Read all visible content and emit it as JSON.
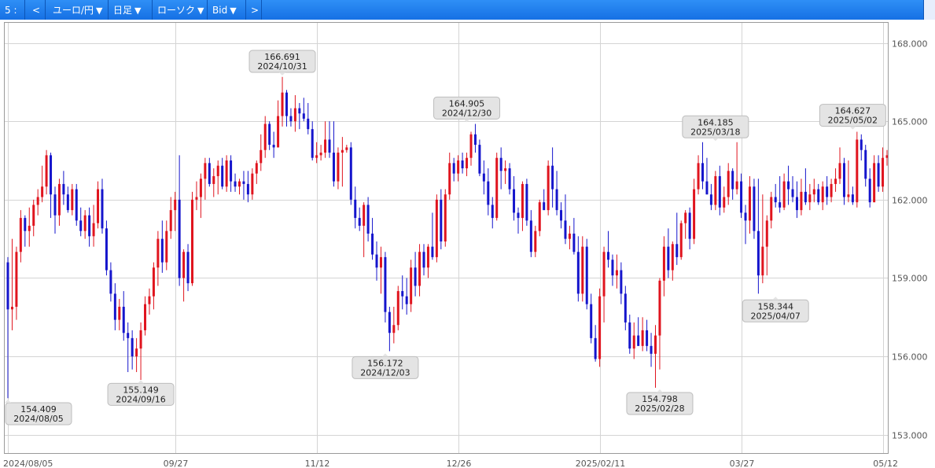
{
  "toolbar": {
    "slot_label": "5 :",
    "prev_label": "<",
    "pair_label": "ユーロ/円",
    "interval_label": "日足",
    "type_label": "ローソク",
    "price_label": "Bid",
    "next_label": ">"
  },
  "colors": {
    "up": "#e0141e",
    "down": "#1515cc",
    "grid": "#d4d4d4",
    "label_bg": "#e4e4e4"
  },
  "chart_data": {
    "type": "candlestick",
    "symbol": "EUR/JPY",
    "interval": "daily",
    "ylim": [
      152.3,
      168.8
    ],
    "yticks": [
      153.0,
      156.0,
      159.0,
      162.0,
      165.0,
      168.0
    ],
    "ytick_labels": [
      "153.000",
      "156.000",
      "159.000",
      "162.000",
      "165.000",
      "168.000"
    ],
    "xtick_labels": [
      {
        "label": "2024/08/05",
        "idx": 0
      },
      {
        "label": "09/27",
        "idx": 39
      },
      {
        "label": "11/12",
        "idx": 72
      },
      {
        "label": "12/26",
        "idx": 105
      },
      {
        "label": "2025/02/11",
        "idx": 138
      },
      {
        "label": "03/27",
        "idx": 171
      },
      {
        "label": "05/12",
        "idx": 204
      }
    ],
    "annotations": [
      {
        "value": "154.409",
        "date": "2024/08/05",
        "idx": 0,
        "price": 154.409,
        "pos": "below"
      },
      {
        "value": "155.149",
        "date": "2024/09/16",
        "idx": 31,
        "price": 155.149,
        "pos": "below"
      },
      {
        "value": "166.691",
        "date": "2024/10/31",
        "idx": 64,
        "price": 166.691,
        "pos": "above"
      },
      {
        "value": "156.172",
        "date": "2024/12/03",
        "idx": 88,
        "price": 156.172,
        "pos": "below"
      },
      {
        "value": "164.905",
        "date": "2024/12/30",
        "idx": 107,
        "price": 164.905,
        "pos": "above"
      },
      {
        "value": "154.798",
        "date": "2025/02/28",
        "idx": 152,
        "price": 154.798,
        "pos": "below"
      },
      {
        "value": "164.185",
        "date": "2025/03/18",
        "idx": 165,
        "price": 164.185,
        "pos": "above"
      },
      {
        "value": "158.344",
        "date": "2025/04/07",
        "idx": 179,
        "price": 158.344,
        "pos": "below"
      },
      {
        "value": "164.627",
        "date": "2025/05/02",
        "idx": 197,
        "price": 164.627,
        "pos": "above"
      }
    ],
    "candles": [
      [
        159.6,
        159.8,
        154.4,
        157.8
      ],
      [
        157.8,
        160.5,
        157.0,
        157.9
      ],
      [
        157.9,
        160.2,
        157.4,
        160.0
      ],
      [
        160.0,
        161.6,
        159.6,
        161.3
      ],
      [
        161.3,
        161.4,
        160.2,
        160.8
      ],
      [
        160.8,
        161.7,
        160.2,
        161.0
      ],
      [
        161.0,
        162.0,
        160.6,
        161.8
      ],
      [
        161.8,
        162.4,
        161.4,
        162.1
      ],
      [
        162.1,
        163.3,
        161.9,
        162.5
      ],
      [
        162.5,
        163.9,
        162.2,
        163.7
      ],
      [
        163.7,
        163.8,
        161.3,
        162.2
      ],
      [
        162.2,
        162.5,
        160.7,
        161.4
      ],
      [
        161.4,
        162.8,
        161.0,
        162.6
      ],
      [
        162.6,
        163.1,
        161.8,
        162.2
      ],
      [
        162.2,
        162.5,
        161.5,
        161.6
      ],
      [
        161.6,
        162.6,
        161.4,
        162.4
      ],
      [
        162.4,
        162.6,
        161.0,
        161.2
      ],
      [
        161.2,
        161.7,
        160.6,
        160.8
      ],
      [
        160.8,
        161.6,
        160.5,
        161.4
      ],
      [
        161.4,
        161.7,
        160.2,
        160.6
      ],
      [
        160.6,
        161.8,
        160.2,
        161.1
      ],
      [
        161.1,
        162.7,
        160.9,
        162.4
      ],
      [
        162.4,
        162.8,
        160.7,
        160.9
      ],
      [
        160.9,
        161.2,
        159.1,
        159.3
      ],
      [
        159.3,
        159.6,
        158.1,
        158.4
      ],
      [
        158.4,
        158.8,
        157.0,
        157.4
      ],
      [
        157.4,
        158.2,
        157.0,
        157.9
      ],
      [
        157.9,
        158.5,
        156.6,
        156.9
      ],
      [
        156.9,
        157.3,
        155.4,
        156.7
      ],
      [
        156.7,
        157.0,
        155.5,
        156.0
      ],
      [
        156.0,
        156.7,
        155.4,
        156.3
      ],
      [
        156.3,
        157.3,
        155.1,
        157.0
      ],
      [
        157.0,
        158.3,
        156.8,
        158.0
      ],
      [
        158.0,
        158.6,
        157.6,
        158.3
      ],
      [
        158.3,
        159.6,
        157.8,
        159.4
      ],
      [
        159.4,
        160.8,
        158.7,
        160.5
      ],
      [
        160.5,
        161.2,
        159.2,
        159.6
      ],
      [
        159.6,
        161.2,
        159.3,
        160.8
      ],
      [
        160.8,
        162.1,
        160.5,
        161.6
      ],
      [
        161.6,
        162.3,
        160.8,
        162.0
      ],
      [
        162.0,
        163.7,
        158.7,
        159.0
      ],
      [
        159.0,
        160.1,
        158.1,
        160.0
      ],
      [
        160.0,
        160.3,
        158.5,
        158.8
      ],
      [
        158.8,
        162.3,
        158.7,
        162.0
      ],
      [
        162.0,
        162.7,
        161.6,
        162.1
      ],
      [
        162.1,
        163.0,
        161.3,
        162.8
      ],
      [
        162.8,
        163.6,
        162.0,
        163.4
      ],
      [
        163.4,
        163.6,
        162.5,
        162.6
      ],
      [
        162.6,
        163.2,
        162.1,
        162.9
      ],
      [
        162.9,
        163.5,
        162.2,
        163.3
      ],
      [
        163.3,
        163.6,
        162.4,
        162.5
      ],
      [
        162.5,
        163.7,
        162.3,
        163.5
      ],
      [
        163.5,
        163.7,
        162.3,
        162.7
      ],
      [
        162.7,
        163.0,
        162.3,
        162.5
      ],
      [
        162.5,
        162.8,
        162.2,
        162.7
      ],
      [
        162.7,
        163.1,
        162.0,
        162.6
      ],
      [
        162.6,
        163.1,
        161.9,
        162.2
      ],
      [
        162.2,
        163.2,
        162.0,
        163.0
      ],
      [
        163.0,
        163.5,
        162.6,
        163.4
      ],
      [
        163.4,
        164.5,
        163.1,
        163.9
      ],
      [
        163.9,
        165.2,
        163.6,
        164.9
      ],
      [
        164.9,
        165.0,
        163.9,
        164.1
      ],
      [
        164.1,
        164.6,
        163.6,
        164.0
      ],
      [
        164.0,
        165.8,
        164.0,
        165.2
      ],
      [
        165.2,
        166.7,
        164.8,
        166.1
      ],
      [
        166.1,
        166.2,
        164.8,
        165.2
      ],
      [
        165.2,
        165.5,
        164.8,
        165.0
      ],
      [
        165.0,
        166.0,
        164.6,
        165.5
      ],
      [
        165.5,
        165.7,
        164.7,
        165.3
      ],
      [
        165.3,
        165.9,
        165.0,
        165.1
      ],
      [
        165.1,
        165.7,
        164.5,
        164.7
      ],
      [
        164.7,
        165.0,
        163.5,
        163.6
      ],
      [
        163.6,
        164.2,
        163.4,
        163.7
      ],
      [
        163.7,
        164.1,
        163.5,
        163.8
      ],
      [
        163.8,
        165.0,
        163.6,
        164.3
      ],
      [
        164.3,
        165.0,
        163.6,
        163.8
      ],
      [
        163.8,
        165.0,
        162.5,
        162.7
      ],
      [
        162.7,
        164.0,
        162.4,
        163.8
      ],
      [
        163.8,
        164.4,
        162.5,
        163.9
      ],
      [
        163.9,
        164.1,
        163.8,
        164.0
      ],
      [
        164.0,
        164.2,
        161.8,
        162.0
      ],
      [
        162.0,
        162.5,
        160.9,
        161.3
      ],
      [
        161.3,
        161.7,
        160.8,
        161.0
      ],
      [
        161.0,
        161.9,
        159.8,
        161.8
      ],
      [
        161.8,
        162.1,
        160.4,
        160.7
      ],
      [
        160.7,
        161.3,
        159.7,
        159.9
      ],
      [
        159.9,
        160.4,
        158.9,
        159.4
      ],
      [
        159.4,
        160.2,
        158.4,
        159.8
      ],
      [
        159.8,
        160.0,
        157.3,
        157.7
      ],
      [
        157.7,
        157.9,
        156.2,
        156.9
      ],
      [
        156.9,
        157.9,
        156.5,
        157.2
      ],
      [
        157.2,
        158.7,
        157.0,
        158.5
      ],
      [
        158.5,
        159.1,
        157.8,
        158.3
      ],
      [
        158.3,
        159.0,
        157.6,
        158.0
      ],
      [
        158.0,
        159.7,
        157.7,
        159.4
      ],
      [
        159.4,
        160.0,
        158.3,
        158.7
      ],
      [
        158.7,
        160.3,
        158.3,
        160.0
      ],
      [
        160.0,
        160.3,
        159.1,
        159.4
      ],
      [
        159.4,
        160.3,
        159.0,
        160.2
      ],
      [
        160.2,
        161.5,
        159.7,
        159.8
      ],
      [
        159.8,
        162.2,
        159.6,
        162.0
      ],
      [
        162.0,
        162.4,
        160.1,
        160.4
      ],
      [
        160.4,
        162.4,
        160.2,
        162.2
      ],
      [
        162.2,
        163.8,
        162.0,
        163.4
      ],
      [
        163.4,
        163.6,
        162.7,
        163.0
      ],
      [
        163.0,
        163.7,
        162.7,
        163.5
      ],
      [
        163.5,
        163.8,
        163.0,
        163.2
      ],
      [
        163.2,
        163.8,
        162.9,
        163.6
      ],
      [
        163.6,
        164.6,
        163.3,
        164.5
      ],
      [
        164.5,
        164.9,
        163.8,
        164.1
      ],
      [
        164.1,
        164.3,
        162.9,
        163.0
      ],
      [
        163.0,
        163.5,
        162.2,
        162.7
      ],
      [
        162.7,
        163.2,
        161.4,
        161.8
      ],
      [
        161.8,
        162.1,
        160.9,
        161.3
      ],
      [
        161.3,
        163.8,
        161.2,
        163.6
      ],
      [
        163.6,
        164.0,
        162.4,
        163.1
      ],
      [
        163.1,
        163.5,
        162.6,
        163.2
      ],
      [
        163.2,
        163.4,
        162.2,
        162.4
      ],
      [
        162.4,
        162.9,
        161.2,
        161.5
      ],
      [
        161.5,
        161.7,
        160.7,
        161.3
      ],
      [
        161.3,
        162.7,
        160.8,
        162.6
      ],
      [
        162.6,
        162.8,
        161.0,
        161.2
      ],
      [
        161.2,
        161.6,
        159.8,
        160.0
      ],
      [
        160.0,
        161.0,
        159.8,
        160.8
      ],
      [
        160.8,
        162.0,
        160.6,
        161.9
      ],
      [
        161.9,
        162.4,
        161.6,
        161.6
      ],
      [
        161.6,
        163.5,
        161.4,
        163.3
      ],
      [
        163.3,
        164.0,
        161.7,
        162.4
      ],
      [
        162.4,
        163.1,
        161.4,
        161.6
      ],
      [
        161.6,
        161.9,
        160.9,
        161.2
      ],
      [
        161.2,
        162.2,
        160.3,
        160.5
      ],
      [
        160.5,
        161.0,
        160.1,
        160.7
      ],
      [
        160.7,
        161.3,
        159.9,
        160.0
      ],
      [
        160.0,
        160.6,
        158.1,
        158.4
      ],
      [
        158.4,
        160.6,
        158.1,
        160.2
      ],
      [
        160.2,
        160.5,
        157.8,
        158.0
      ],
      [
        158.0,
        158.4,
        156.5,
        156.7
      ],
      [
        156.7,
        157.2,
        155.8,
        155.9
      ],
      [
        155.9,
        158.6,
        155.6,
        158.3
      ],
      [
        158.3,
        160.2,
        157.3,
        160.0
      ],
      [
        160.0,
        160.8,
        159.4,
        159.7
      ],
      [
        159.7,
        159.9,
        158.7,
        159.1
      ],
      [
        159.1,
        159.9,
        158.6,
        159.3
      ],
      [
        159.3,
        159.6,
        158.0,
        158.4
      ],
      [
        158.4,
        158.7,
        157.0,
        157.3
      ],
      [
        157.3,
        157.6,
        156.1,
        156.3
      ],
      [
        156.3,
        157.3,
        155.9,
        156.8
      ],
      [
        156.8,
        157.5,
        156.4,
        156.4
      ],
      [
        156.4,
        157.5,
        156.2,
        157.0
      ],
      [
        157.0,
        157.4,
        156.2,
        156.4
      ],
      [
        156.4,
        156.9,
        155.6,
        156.1
      ],
      [
        156.1,
        157.2,
        154.8,
        156.8
      ],
      [
        156.8,
        159.0,
        155.5,
        158.9
      ],
      [
        158.9,
        160.6,
        158.3,
        160.2
      ],
      [
        160.2,
        160.9,
        159.0,
        159.3
      ],
      [
        159.3,
        160.4,
        158.9,
        160.3
      ],
      [
        160.3,
        161.5,
        159.5,
        159.8
      ],
      [
        159.8,
        161.2,
        159.7,
        161.1
      ],
      [
        161.1,
        161.6,
        160.5,
        161.5
      ],
      [
        161.5,
        161.7,
        160.1,
        160.5
      ],
      [
        160.5,
        162.8,
        160.3,
        162.4
      ],
      [
        162.4,
        163.7,
        162.2,
        163.4
      ],
      [
        163.4,
        164.2,
        162.4,
        162.7
      ],
      [
        162.7,
        163.6,
        162.2,
        162.2
      ],
      [
        162.2,
        162.6,
        161.6,
        161.8
      ],
      [
        161.8,
        163.1,
        161.6,
        162.9
      ],
      [
        162.9,
        163.3,
        161.4,
        161.7
      ],
      [
        161.7,
        162.5,
        161.5,
        162.1
      ],
      [
        162.1,
        163.4,
        161.8,
        163.1
      ],
      [
        163.1,
        163.2,
        162.0,
        162.4
      ],
      [
        162.4,
        164.2,
        162.2,
        162.7
      ],
      [
        162.7,
        163.0,
        161.3,
        161.5
      ],
      [
        161.5,
        161.8,
        160.3,
        161.2
      ],
      [
        161.2,
        162.9,
        160.7,
        162.5
      ],
      [
        162.5,
        162.8,
        160.5,
        160.8
      ],
      [
        160.8,
        162.8,
        158.4,
        159.1
      ],
      [
        159.1,
        162.2,
        158.8,
        160.2
      ],
      [
        160.2,
        161.4,
        159.1,
        161.2
      ],
      [
        161.2,
        162.3,
        160.9,
        162.1
      ],
      [
        162.1,
        162.6,
        161.7,
        161.9
      ],
      [
        161.9,
        162.9,
        161.5,
        161.7
      ],
      [
        161.7,
        163.0,
        161.6,
        162.7
      ],
      [
        162.7,
        163.3,
        161.8,
        162.4
      ],
      [
        162.4,
        162.9,
        161.9,
        162.1
      ],
      [
        162.1,
        162.7,
        161.3,
        161.6
      ],
      [
        161.6,
        162.8,
        161.4,
        162.3
      ],
      [
        162.3,
        163.2,
        161.8,
        161.9
      ],
      [
        161.9,
        162.6,
        161.6,
        162.2
      ],
      [
        162.2,
        162.8,
        161.9,
        162.4
      ],
      [
        162.4,
        162.6,
        161.8,
        161.9
      ],
      [
        161.9,
        162.7,
        161.6,
        162.5
      ],
      [
        162.5,
        162.9,
        161.8,
        162.1
      ],
      [
        162.1,
        162.8,
        161.9,
        162.6
      ],
      [
        162.6,
        163.2,
        162.3,
        162.8
      ],
      [
        162.8,
        164.0,
        162.6,
        163.4
      ],
      [
        163.4,
        163.6,
        161.8,
        162.1
      ],
      [
        162.1,
        163.5,
        161.9,
        162.2
      ],
      [
        162.2,
        162.5,
        161.8,
        161.9
      ],
      [
        161.9,
        164.6,
        161.7,
        164.3
      ],
      [
        164.3,
        164.5,
        163.5,
        163.9
      ],
      [
        163.9,
        164.1,
        162.5,
        162.8
      ],
      [
        162.8,
        163.2,
        161.7,
        161.9
      ],
      [
        161.9,
        163.7,
        161.9,
        163.4
      ],
      [
        163.4,
        163.7,
        162.3,
        162.5
      ],
      [
        162.5,
        164.0,
        162.3,
        163.6
      ],
      [
        163.6,
        163.9,
        163.3,
        163.7
      ]
    ]
  }
}
